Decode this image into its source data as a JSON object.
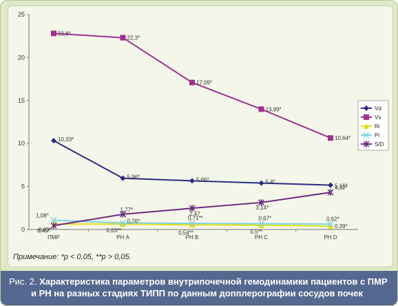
{
  "chart_data": {
    "type": "line",
    "categories": [
      "ПМР",
      "РН А",
      "РН В",
      "РН С",
      "РН D"
    ],
    "ylim": [
      0,
      25
    ],
    "yticks": [
      0,
      5,
      10,
      15,
      20,
      25
    ],
    "grid": false,
    "legend_position": "right",
    "series": [
      {
        "name": "Vd",
        "color": "#2b2b86",
        "marker": "diamond",
        "values": [
          10.33,
          5.96,
          5.66,
          5.4,
          5.16
        ],
        "labels": [
          "10,33*",
          "5,96*",
          "5,66*",
          "5,4*",
          "5,16*"
        ]
      },
      {
        "name": "Vs",
        "color": "#a0308f",
        "marker": "square",
        "values": [
          22.8,
          22.3,
          17.09,
          13.99,
          10.64
        ],
        "labels": [
          "22,8*",
          "22,3*",
          "17,09*",
          "13,99*",
          "10,64*"
        ]
      },
      {
        "name": "Ri",
        "color": "#e3e01a",
        "marker": "triangle",
        "values": [
          0.63,
          0.63,
          0.54,
          0.5,
          0.39
        ],
        "labels": [
          "0,63*",
          "0,63**",
          "0,54**",
          "0,5**",
          "0,39*"
        ]
      },
      {
        "name": "Pi",
        "color": "#7fd3e0",
        "marker": "x",
        "values": [
          1.08,
          0.76,
          0.71,
          0.67,
          0.62
        ],
        "labels": [
          "1,08*",
          "0,76*",
          "0,71**",
          "0,67*",
          "0,62*"
        ]
      },
      {
        "name": "S/D",
        "color": "#6b2a82",
        "marker": "star",
        "values": [
          0.45,
          1.77,
          2.47,
          3.14,
          4.32
        ],
        "labels": [
          "0,45*",
          "1,77*",
          "2,47",
          "3,14*",
          "4,32*"
        ]
      }
    ]
  },
  "note": "Примечание: *p < 0,05, **p > 0,05.",
  "caption": {
    "prefix": "Рис. 2.",
    "line1": "Характеристика параметров внутрипочечной гемодинамики пациентов с ПМР",
    "line2": "и РН на разных стадиях ТИПП по данным допплерографии сосудов почек"
  }
}
